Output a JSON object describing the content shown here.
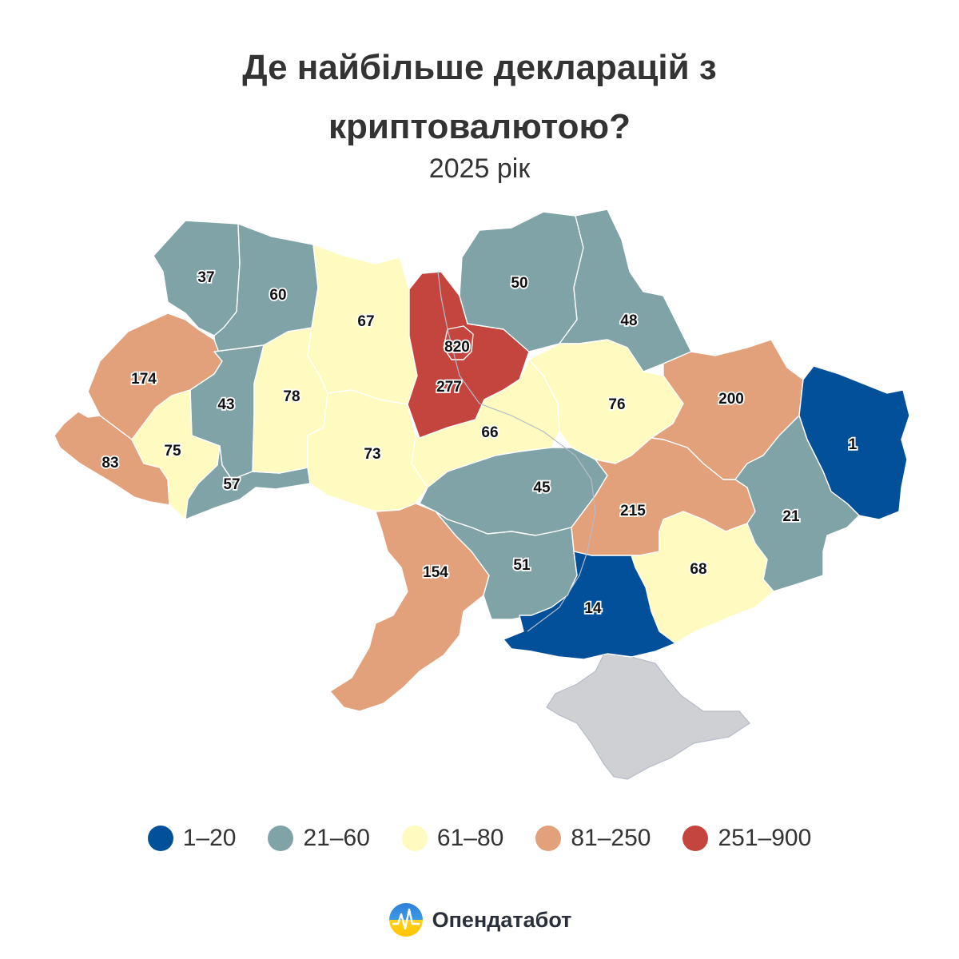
{
  "title_line1": "Де найбільше декларацій з",
  "title_line2": "криптовалютою?",
  "subtitle": "2025 рік",
  "colors": {
    "c1": "#02509a",
    "c2": "#7fa3a6",
    "c3": "#fffbc0",
    "c4": "#e2a07b",
    "c5": "#c4453d",
    "crimea": "#cfd0d3"
  },
  "legend": [
    {
      "label": "1–20",
      "color_key": "c1"
    },
    {
      "label": "21–60",
      "color_key": "c2"
    },
    {
      "label": "61–80",
      "color_key": "c3"
    },
    {
      "label": "81–250",
      "color_key": "c4"
    },
    {
      "label": "251–900",
      "color_key": "c5"
    }
  ],
  "regions": [
    {
      "id": "volyn",
      "value": "37",
      "color_key": "c2"
    },
    {
      "id": "rivne",
      "value": "60",
      "color_key": "c2"
    },
    {
      "id": "lviv",
      "value": "174",
      "color_key": "c4"
    },
    {
      "id": "ternopil",
      "value": "43",
      "color_key": "c2"
    },
    {
      "id": "zakarpattia",
      "value": "83",
      "color_key": "c4"
    },
    {
      "id": "ivano-frankivsk",
      "value": "75",
      "color_key": "c3"
    },
    {
      "id": "chernivtsi",
      "value": "57",
      "color_key": "c2"
    },
    {
      "id": "khmelnytskyi",
      "value": "78",
      "color_key": "c3"
    },
    {
      "id": "zhytomyr",
      "value": "67",
      "color_key": "c3"
    },
    {
      "id": "vinnytsia",
      "value": "73",
      "color_key": "c3"
    },
    {
      "id": "kyiv-city",
      "value": "820",
      "color_key": "c5"
    },
    {
      "id": "kyiv-oblast",
      "value": "277",
      "color_key": "c5"
    },
    {
      "id": "chernihiv",
      "value": "50",
      "color_key": "c2"
    },
    {
      "id": "sumy",
      "value": "48",
      "color_key": "c2"
    },
    {
      "id": "cherkasy",
      "value": "66",
      "color_key": "c3"
    },
    {
      "id": "poltava",
      "value": "76",
      "color_key": "c3"
    },
    {
      "id": "kharkiv",
      "value": "200",
      "color_key": "c4"
    },
    {
      "id": "luhansk",
      "value": "1",
      "color_key": "c1"
    },
    {
      "id": "kirovohrad",
      "value": "45",
      "color_key": "c2"
    },
    {
      "id": "dnipropetrovsk",
      "value": "215",
      "color_key": "c4"
    },
    {
      "id": "donetsk",
      "value": "21",
      "color_key": "c2"
    },
    {
      "id": "odesa",
      "value": "154",
      "color_key": "c4"
    },
    {
      "id": "mykolaiv",
      "value": "51",
      "color_key": "c2"
    },
    {
      "id": "zaporizhzhia",
      "value": "68",
      "color_key": "c3"
    },
    {
      "id": "kherson",
      "value": "14",
      "color_key": "c1"
    },
    {
      "id": "crimea",
      "value": "",
      "color_key": "crimea"
    }
  ],
  "brand": {
    "name": "Опендатабот"
  }
}
